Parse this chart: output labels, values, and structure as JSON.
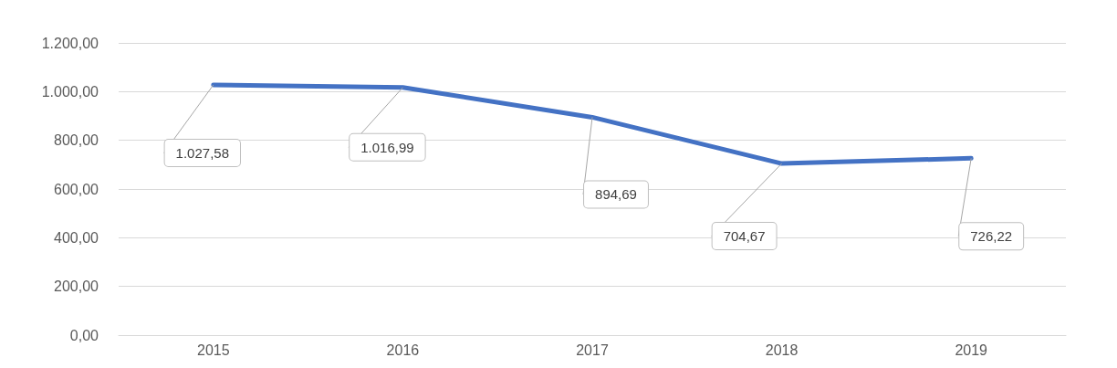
{
  "chart_data": {
    "type": "line",
    "categories": [
      "2015",
      "2016",
      "2017",
      "2018",
      "2019"
    ],
    "series": [
      {
        "color": "#4472c4",
        "values": [
          1027.58,
          1016.99,
          894.69,
          704.67,
          726.22
        ],
        "value_labels": [
          "1.027,58",
          "1.016,99",
          "894,69",
          "704,67",
          "726,22"
        ]
      }
    ],
    "ylim": [
      0,
      1200
    ],
    "yticks": [
      {
        "value": 0,
        "label": "0,00"
      },
      {
        "value": 200,
        "label": "200,00"
      },
      {
        "value": 400,
        "label": "400,00"
      },
      {
        "value": 600,
        "label": "600,00"
      },
      {
        "value": 800,
        "label": "800,00"
      },
      {
        "value": 1000,
        "label": "1.000,00"
      },
      {
        "value": 1200,
        "label": "1.200,00"
      }
    ],
    "grid": "y",
    "marker": "none",
    "line_style": "solid"
  }
}
